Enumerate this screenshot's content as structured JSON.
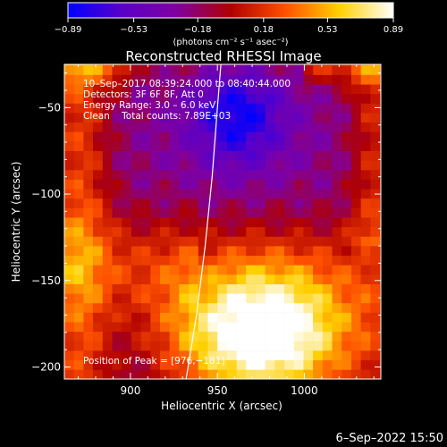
{
  "chart_data": {
    "type": "heatmap",
    "title": "Reconstructed RHESSI Image",
    "xlabel": "Heliocentric X (arcsec)",
    "ylabel": "Heliocentric Y (arcsec)",
    "x_range": [
      862,
      1044
    ],
    "y_range": [
      -207,
      -25
    ],
    "x_ticks": [
      900,
      950,
      1000
    ],
    "x_tick_labels": [
      "900",
      "950",
      "1000"
    ],
    "y_ticks": [
      -50,
      -100,
      -150,
      -200
    ],
    "y_tick_labels": [
      "−50",
      "−100",
      "−150",
      "−200"
    ],
    "colorbar": {
      "range": [
        -0.89,
        0.89
      ],
      "ticks": [
        -0.89,
        -0.53,
        -0.18,
        0.18,
        0.53,
        0.89
      ],
      "tick_labels": [
        "−0.89",
        "−0.53",
        "−0.18",
        "0.18",
        "0.53",
        "0.89"
      ],
      "units": "(photons cm⁻² s⁻¹ asec⁻²)",
      "colormap": [
        "#0000ff",
        "#5a00c8",
        "#8000a0",
        "#b00000",
        "#ff5000",
        "#ffd000",
        "#ffffff"
      ]
    },
    "annotations": [
      "10–Sep–2017 08:39:24.000 to 08:40:44.000",
      "Detectors: 3F 6F 8F, Att 0",
      "Energy Range: 3.0 – 6.0 keV",
      "Clean    Total counts: 7.89E+03"
    ],
    "peak_label": "Position of Peak = [976,−181]",
    "peak": [
      976,
      -181
    ],
    "limb_curve": [
      [
        932,
        -207
      ],
      [
        938,
        -170
      ],
      [
        943,
        -130
      ],
      [
        947,
        -90
      ],
      [
        950,
        -50
      ],
      [
        952,
        -25
      ]
    ],
    "intensity_features": [
      {
        "type": "min",
        "x": 962,
        "y": -55,
        "value": -0.85
      },
      {
        "type": "max",
        "x": 976,
        "y": -181,
        "value": 0.89
      }
    ]
  },
  "footer": {
    "date": "6–Sep–2022 15:50"
  }
}
